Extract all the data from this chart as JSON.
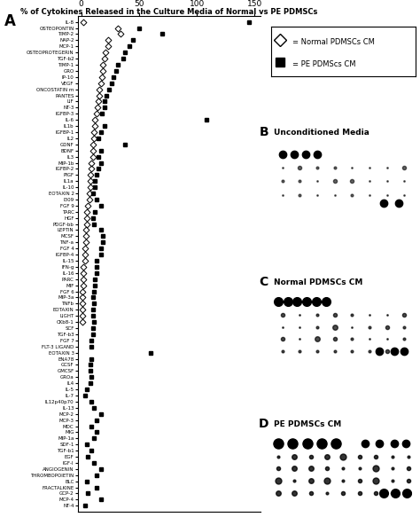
{
  "title": "% of Cytokines Released in the Culture Media of Normal vs PE PDMSCs",
  "categories": [
    "IL-8",
    "OSTEOPONTIN",
    "TIMP-2",
    "NAP-2",
    "MCP-1",
    "OSTEOPROTEGERIN",
    "TGF-b2",
    "TIMP-1",
    "GRO",
    "IP-10",
    "VEGF",
    "ONCOSTATIN m",
    "RANTES",
    "LIF",
    "NT-3",
    "IGFBP-3",
    "IL-6",
    "IL1b",
    "IGFBP-1",
    "IL2",
    "GDNF",
    "BDNF",
    "IL3",
    "MIP-1b",
    "IGFBP-2",
    "PlGF",
    "IL1a",
    "IL-10",
    "EOTAXIN 2",
    "I309",
    "FGF 9",
    "TARC",
    "HGF",
    "PDGF-bb",
    "LEPTIN",
    "MCSF",
    "TNF-a",
    "FGF 4",
    "IGFBP-4",
    "IL-15",
    "IFN-g",
    "IL-16",
    "PARC",
    "MIF",
    "FGF 6",
    "MIP-3a",
    "TNFb",
    "EOTAXIN",
    "LIGHT",
    "CKb8-1",
    "SCF",
    "TGF-b3",
    "FGF 7",
    "FLT-3 LIGAND",
    "EOTAXIN 3",
    "ENA78",
    "GCSF",
    "GMCSF",
    "GROa",
    "IL4",
    "IL-5",
    "IL-7",
    "IL12p40p70",
    "IL-13",
    "MCP-2",
    "MCP-3",
    "MDC",
    "MIG",
    "MIP-1a",
    "SDF-1",
    "TGF-b1",
    "EGF",
    "IGF-I",
    "ANGIOGENIN",
    "THROMBOPOIETIN",
    "BLC",
    "FRACTALKINE",
    "GCP-2",
    "MCP-4",
    "NT-4"
  ],
  "normal_values": [
    2,
    32,
    34,
    23,
    23,
    21,
    20,
    19,
    19,
    18,
    17,
    16,
    16,
    15,
    14,
    13,
    12,
    12,
    11,
    11,
    10,
    10,
    10,
    9,
    9,
    8,
    8,
    8,
    7,
    7,
    6,
    5,
    5,
    5,
    4,
    4,
    4,
    3,
    3,
    3,
    2,
    2,
    2,
    2,
    1,
    1,
    1,
    1,
    1,
    1,
    0,
    0,
    0,
    0,
    0,
    0,
    0,
    0,
    0,
    0,
    0,
    0,
    0,
    0,
    0,
    0,
    0,
    0,
    0,
    0,
    0,
    0,
    0,
    0,
    0,
    0,
    0,
    0,
    0,
    0
  ],
  "pe_values": [
    145,
    50,
    70,
    45,
    42,
    38,
    36,
    32,
    30,
    28,
    26,
    24,
    22,
    20,
    20,
    18,
    108,
    20,
    17,
    15,
    38,
    17,
    15,
    17,
    15,
    13,
    12,
    12,
    10,
    13,
    17,
    12,
    10,
    11,
    17,
    19,
    19,
    17,
    17,
    13,
    13,
    13,
    12,
    12,
    11,
    10,
    11,
    10,
    10,
    11,
    10,
    10,
    9,
    9,
    60,
    9,
    8,
    8,
    9,
    8,
    5,
    3,
    9,
    11,
    17,
    13,
    9,
    13,
    11,
    5,
    9,
    6,
    11,
    17,
    13,
    5,
    13,
    6,
    17,
    3
  ],
  "xticks": [
    0,
    50,
    100,
    150
  ],
  "xlim": [
    -3,
    155
  ],
  "legend_items": [
    "= Normal PDMSCs CM",
    "= PE PDMScs CM"
  ],
  "panel_labels": [
    "B",
    "C",
    "D"
  ],
  "panel_titles": [
    "Unconditioned Media",
    "Normal PDMSCs CM",
    "PE PDMSCs CM"
  ],
  "bg_color": "#c8c8c8",
  "dot_rows": 5,
  "dot_cols": 8
}
